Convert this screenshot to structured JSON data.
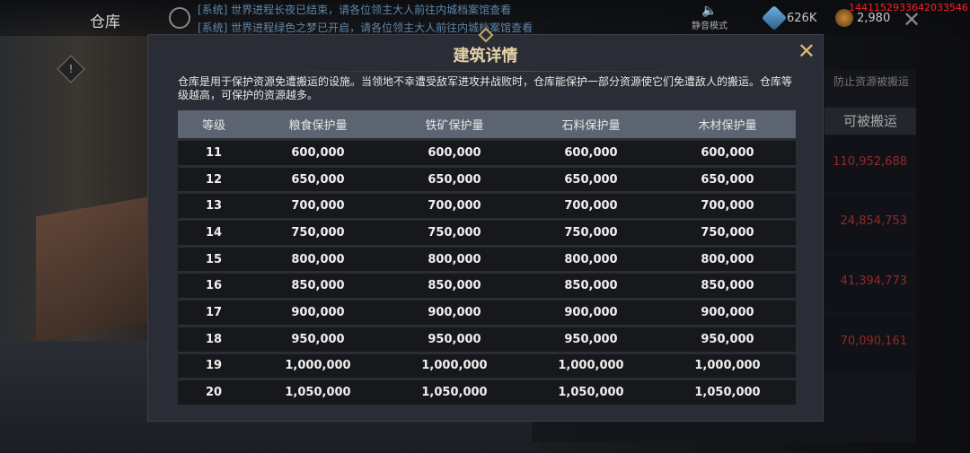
{
  "header": {
    "title": "仓库",
    "news": [
      "[系统] 世界进程长夜已结束，请各位领主大人前往内城档案馆查看",
      "[系统] 世界进程绿色之梦已开启，请各位领主大人前往内城档案馆查看"
    ],
    "mute_label": "静音模式",
    "resource1": "626K",
    "resource2": "2,980",
    "uid": "1441152933642033546"
  },
  "right_panel": {
    "heading": "防止资源被搬运",
    "column": "可被搬运",
    "values": [
      "110,952,688",
      "24,854,753",
      "41,394,773",
      "70,090,161"
    ]
  },
  "modal": {
    "title": "建筑详情",
    "description": "仓库是用于保护资源免遭搬运的设施。当领地不幸遭受敌军进攻并战败时，仓库能保护一部分资源使它们免遭敌人的搬运。仓库等级越高，可保护的资源越多。",
    "columns": [
      "等级",
      "粮食保护量",
      "铁矿保护量",
      "石料保护量",
      "木材保护量"
    ],
    "rows": [
      [
        "11",
        "600,000",
        "600,000",
        "600,000",
        "600,000"
      ],
      [
        "12",
        "650,000",
        "650,000",
        "650,000",
        "650,000"
      ],
      [
        "13",
        "700,000",
        "700,000",
        "700,000",
        "700,000"
      ],
      [
        "14",
        "750,000",
        "750,000",
        "750,000",
        "750,000"
      ],
      [
        "15",
        "800,000",
        "800,000",
        "800,000",
        "800,000"
      ],
      [
        "16",
        "850,000",
        "850,000",
        "850,000",
        "850,000"
      ],
      [
        "17",
        "900,000",
        "900,000",
        "900,000",
        "900,000"
      ],
      [
        "18",
        "950,000",
        "950,000",
        "950,000",
        "950,000"
      ],
      [
        "19",
        "1,000,000",
        "1,000,000",
        "1,000,000",
        "1,000,000"
      ],
      [
        "20",
        "1,050,000",
        "1,050,000",
        "1,050,000",
        "1,050,000"
      ]
    ]
  }
}
